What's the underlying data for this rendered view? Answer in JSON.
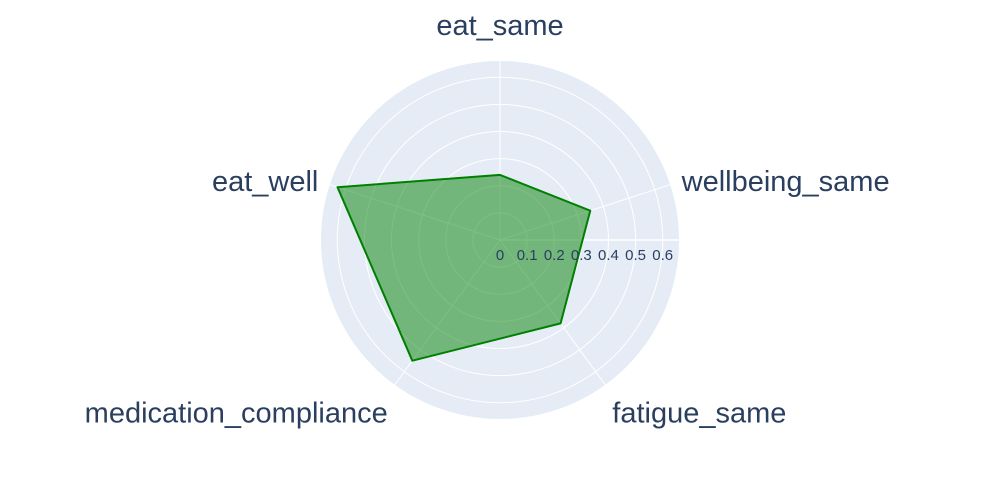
{
  "chart_data": {
    "type": "radar",
    "categories": [
      "eat_same",
      "wellbeing_same",
      "fatigue_same",
      "medication_compliance",
      "eat_well"
    ],
    "values": [
      0.24,
      0.35,
      0.38,
      0.55,
      0.63
    ],
    "radial_range": [
      0,
      0.66
    ],
    "radial_ticks": [
      0,
      0.1,
      0.2,
      0.3,
      0.4,
      0.5,
      0.6
    ],
    "radial_tick_labels": [
      "0",
      "0.1",
      "0.2",
      "0.3",
      "0.4",
      "0.5",
      "0.6"
    ],
    "grid": true,
    "legend": "none",
    "colors": {
      "polar_background": "#e5ecf6",
      "grid": "#ffffff",
      "fill": "#008000",
      "fill_opacity": 0.5,
      "line": "#008000",
      "text": "#2a3f5f"
    }
  }
}
